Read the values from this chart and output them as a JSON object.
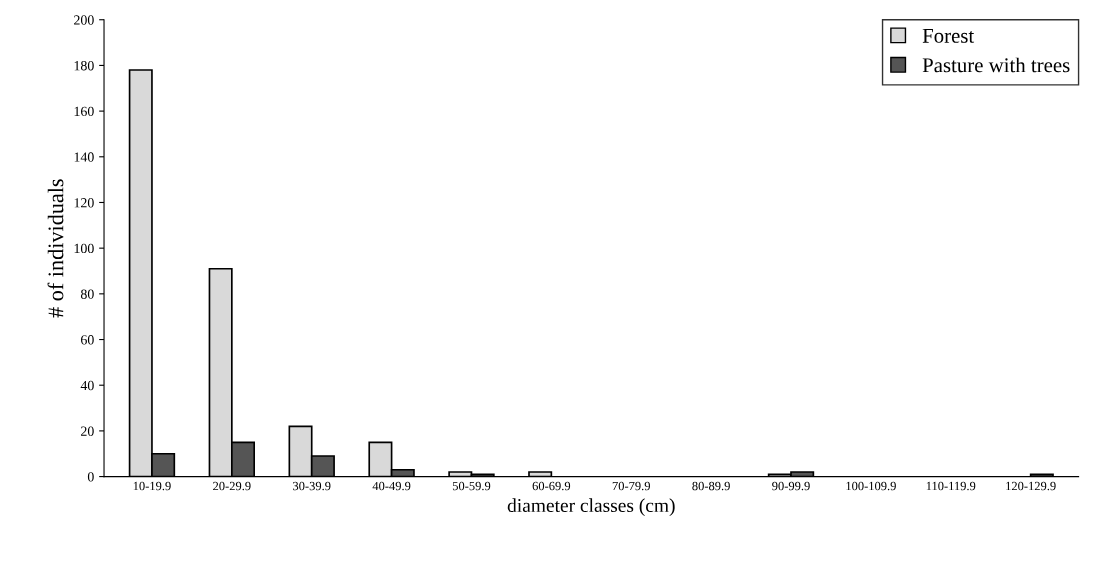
{
  "chart_data": {
    "type": "bar",
    "xlabel": "diameter classes (cm)",
    "ylabel": "# of individuals",
    "categories": [
      "10-19.9",
      "20-29.9",
      "30-39.9",
      "40-49.9",
      "50-59.9",
      "60-69.9",
      "70-79.9",
      "80-89.9",
      "90-99.9",
      "100-109.9",
      "110-119.9",
      "120-129.9"
    ],
    "series": [
      {
        "name": "Forest",
        "color": "#d9d9d9",
        "values": [
          178,
          91,
          22,
          15,
          2,
          2,
          0,
          0,
          1,
          0,
          0,
          0
        ]
      },
      {
        "name": "Pasture with trees",
        "color": "#555555",
        "values": [
          10,
          15,
          9,
          3,
          1,
          0,
          0,
          0,
          2,
          0,
          0,
          1
        ]
      }
    ],
    "ylim": [
      0,
      200
    ],
    "yticks": [
      0,
      20,
      40,
      60,
      80,
      100,
      120,
      140,
      160,
      180,
      200
    ],
    "grid": false,
    "legend": "top right"
  }
}
